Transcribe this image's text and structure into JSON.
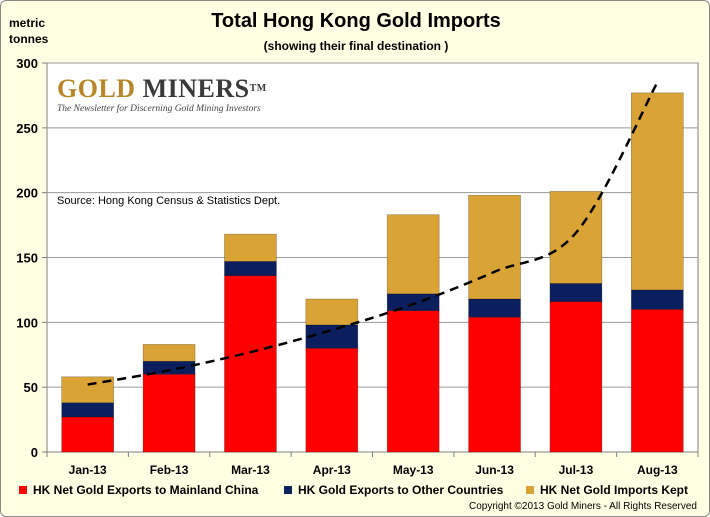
{
  "title": "Total Hong Kong Gold Imports",
  "subtitle": "(showing their final destination )",
  "ylabel": "metric\ntonnes",
  "logo": {
    "brand_gold": "GOLD",
    "brand_miners": "MINERS",
    "trademark": "TM",
    "tagline": "The Newsletter for Discerning Gold Mining Investors"
  },
  "source": "Source:  Hong Kong Census  & Statistics Dept.",
  "copyright": "Copyright ©2013  Gold Miners - All Rights Reserved",
  "colors": {
    "china": "#ff0000",
    "other": "#0b1f5e",
    "kept": "#d9a336",
    "plot_bg": "#ffffff",
    "frame_bg": "#ffffe3",
    "grid": "#9a9a9a",
    "trend": "#000000"
  },
  "chart_data": {
    "type": "bar",
    "stacked": true,
    "categories": [
      "Jan-13",
      "Feb-13",
      "Mar-13",
      "Apr-13",
      "May-13",
      "Jun-13",
      "Jul-13",
      "Aug-13"
    ],
    "series": [
      {
        "name": "HK Net Gold Exports to Mainland China",
        "color_key": "china",
        "values": [
          27,
          60,
          136,
          80,
          109,
          104,
          116,
          110
        ]
      },
      {
        "name": "HK Gold Exports to Other Countries",
        "color_key": "other",
        "values": [
          11,
          10,
          11,
          18,
          13,
          14,
          14,
          15
        ]
      },
      {
        "name": "HK Net Gold Imports Kept",
        "color_key": "kept",
        "values": [
          20,
          13,
          21,
          20,
          61,
          80,
          71,
          152
        ]
      }
    ],
    "trendline": {
      "style": "dashed",
      "kind": "exponential",
      "values": [
        52,
        63,
        77,
        94,
        114,
        139,
        169,
        285
      ]
    },
    "ylim": [
      0,
      300
    ],
    "yticks": [
      0,
      50,
      100,
      150,
      200,
      250,
      300
    ],
    "grid": true,
    "title": "Total Hong Kong Gold Imports",
    "ylabel": "metric tonnes",
    "xlabel": "",
    "legend_position": "bottom"
  }
}
